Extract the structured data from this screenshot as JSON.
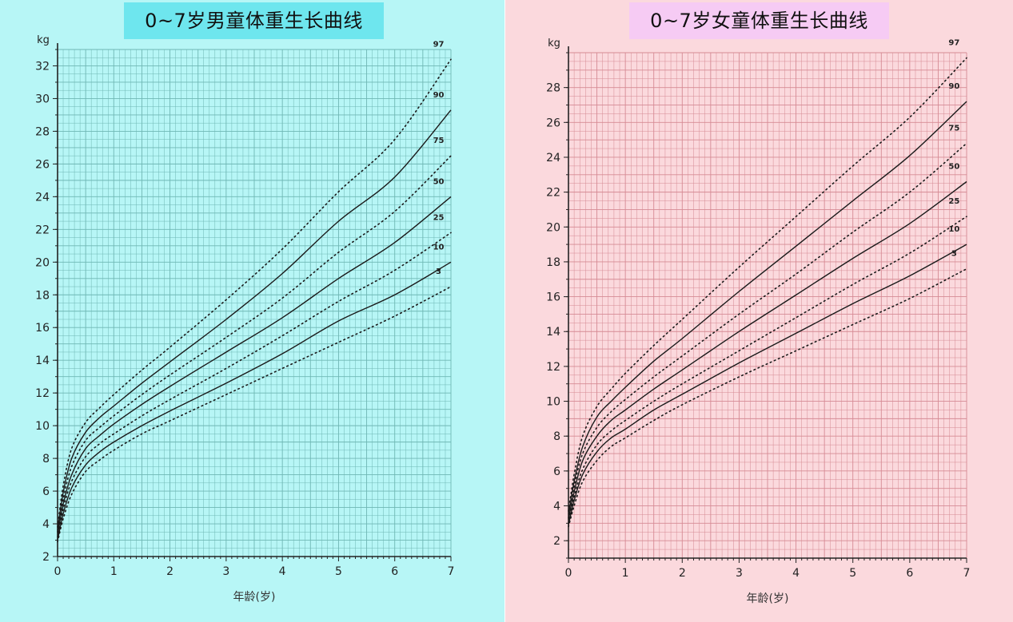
{
  "boys": {
    "title": "0~7岁男童体重生长曲线",
    "accent": "#6ee6ee",
    "chart_data": {
      "type": "line",
      "title": "0~7岁男童体重生长曲线",
      "xlabel": "年龄(岁)",
      "ylabel": "kg",
      "xlim": [
        0,
        7
      ],
      "ylim": [
        2,
        33
      ],
      "xticks": [
        "0",
        "1",
        "2",
        "3",
        "4",
        "5",
        "6",
        "7"
      ],
      "yticks": [
        "2",
        "4",
        "6",
        "8",
        "10",
        "12",
        "14",
        "16",
        "18",
        "20",
        "22",
        "24",
        "26",
        "28",
        "30",
        "32"
      ],
      "grid": true,
      "series": [
        {
          "name": "3",
          "style": "dotted",
          "x": [
            0,
            0.1,
            0.25,
            0.5,
            0.75,
            1,
            1.5,
            2,
            3,
            4,
            5,
            6,
            7
          ],
          "values": [
            2.9,
            4.3,
            5.8,
            7.2,
            7.9,
            8.5,
            9.5,
            10.3,
            11.9,
            13.5,
            15.1,
            16.7,
            18.5
          ]
        },
        {
          "name": "10",
          "style": "solid",
          "x": [
            0,
            0.1,
            0.25,
            0.5,
            0.75,
            1,
            1.5,
            2,
            3,
            4,
            5,
            6,
            7
          ],
          "values": [
            3.0,
            4.6,
            6.2,
            7.6,
            8.4,
            9.0,
            10.0,
            10.9,
            12.6,
            14.4,
            16.4,
            18.0,
            20.0
          ]
        },
        {
          "name": "25",
          "style": "dotted",
          "x": [
            0,
            0.1,
            0.25,
            0.5,
            0.75,
            1,
            1.5,
            2,
            3,
            4,
            5,
            6,
            7
          ],
          "values": [
            3.2,
            4.9,
            6.6,
            8.1,
            8.9,
            9.5,
            10.6,
            11.6,
            13.5,
            15.5,
            17.6,
            19.5,
            21.8
          ]
        },
        {
          "name": "50",
          "style": "solid",
          "x": [
            0,
            0.1,
            0.25,
            0.5,
            0.75,
            1,
            1.5,
            2,
            3,
            4,
            5,
            6,
            7
          ],
          "values": [
            3.3,
            5.2,
            7.0,
            8.6,
            9.4,
            10.1,
            11.3,
            12.4,
            14.5,
            16.6,
            19.0,
            21.2,
            24.0
          ]
        },
        {
          "name": "75",
          "style": "dotted",
          "x": [
            0,
            0.1,
            0.25,
            0.5,
            0.75,
            1,
            1.5,
            2,
            3,
            4,
            5,
            6,
            7
          ],
          "values": [
            3.5,
            5.5,
            7.5,
            9.1,
            9.9,
            10.6,
            11.9,
            13.1,
            15.4,
            17.8,
            20.6,
            23.1,
            26.5
          ]
        },
        {
          "name": "90",
          "style": "solid",
          "x": [
            0,
            0.1,
            0.25,
            0.5,
            0.75,
            1,
            1.5,
            2,
            3,
            4,
            5,
            6,
            7
          ],
          "values": [
            3.6,
            5.9,
            8.0,
            9.6,
            10.5,
            11.2,
            12.6,
            13.9,
            16.5,
            19.3,
            22.5,
            25.2,
            29.3
          ]
        },
        {
          "name": "97",
          "style": "dotted",
          "x": [
            0,
            0.1,
            0.25,
            0.5,
            0.75,
            1,
            1.5,
            2,
            3,
            4,
            5,
            6,
            7
          ],
          "values": [
            3.8,
            6.3,
            8.6,
            10.2,
            11.1,
            11.9,
            13.4,
            14.8,
            17.7,
            20.8,
            24.3,
            27.5,
            32.4
          ]
        }
      ]
    }
  },
  "girls": {
    "title": "0~7岁女童体重生长曲线",
    "accent": "#f6cbf4",
    "chart_data": {
      "type": "line",
      "title": "0~7岁女童体重生长曲线",
      "xlabel": "年龄(岁)",
      "ylabel": "kg",
      "xlim": [
        0,
        7
      ],
      "ylim": [
        1,
        30
      ],
      "xticks": [
        "0",
        "1",
        "2",
        "3",
        "4",
        "5",
        "6",
        "7"
      ],
      "yticks": [
        "2",
        "4",
        "6",
        "8",
        "10",
        "12",
        "14",
        "16",
        "18",
        "20",
        "22",
        "24",
        "26",
        "28"
      ],
      "grid": true,
      "series": [
        {
          "name": "3",
          "style": "dotted",
          "x": [
            0,
            0.1,
            0.25,
            0.5,
            0.75,
            1,
            1.5,
            2,
            3,
            4,
            5,
            6,
            7
          ],
          "values": [
            2.8,
            4.0,
            5.4,
            6.6,
            7.4,
            7.9,
            8.9,
            9.8,
            11.4,
            12.9,
            14.4,
            15.9,
            17.6
          ]
        },
        {
          "name": "10",
          "style": "solid",
          "x": [
            0,
            0.1,
            0.25,
            0.5,
            0.75,
            1,
            1.5,
            2,
            3,
            4,
            5,
            6,
            7
          ],
          "values": [
            2.9,
            4.3,
            5.8,
            7.1,
            7.9,
            8.4,
            9.5,
            10.4,
            12.2,
            13.9,
            15.6,
            17.2,
            19.0
          ]
        },
        {
          "name": "25",
          "style": "dotted",
          "x": [
            0,
            0.1,
            0.25,
            0.5,
            0.75,
            1,
            1.5,
            2,
            3,
            4,
            5,
            6,
            7
          ],
          "values": [
            3.0,
            4.5,
            6.1,
            7.5,
            8.3,
            8.9,
            10.0,
            11.0,
            12.9,
            14.8,
            16.7,
            18.5,
            20.6
          ]
        },
        {
          "name": "50",
          "style": "solid",
          "x": [
            0,
            0.1,
            0.25,
            0.5,
            0.75,
            1,
            1.5,
            2,
            3,
            4,
            5,
            6,
            7
          ],
          "values": [
            3.2,
            4.8,
            6.6,
            8.0,
            8.9,
            9.5,
            10.7,
            11.8,
            14.0,
            16.1,
            18.2,
            20.2,
            22.6
          ]
        },
        {
          "name": "75",
          "style": "dotted",
          "x": [
            0,
            0.1,
            0.25,
            0.5,
            0.75,
            1,
            1.5,
            2,
            3,
            4,
            5,
            6,
            7
          ],
          "values": [
            3.3,
            5.1,
            7.0,
            8.5,
            9.4,
            10.1,
            11.4,
            12.6,
            15.0,
            17.3,
            19.7,
            22.0,
            24.8
          ]
        },
        {
          "name": "90",
          "style": "solid",
          "x": [
            0,
            0.1,
            0.25,
            0.5,
            0.75,
            1,
            1.5,
            2,
            3,
            4,
            5,
            6,
            7
          ],
          "values": [
            3.5,
            5.4,
            7.4,
            9.1,
            10.0,
            10.8,
            12.3,
            13.6,
            16.3,
            18.9,
            21.5,
            24.1,
            27.2
          ]
        },
        {
          "name": "97",
          "style": "dotted",
          "x": [
            0,
            0.1,
            0.25,
            0.5,
            0.75,
            1,
            1.5,
            2,
            3,
            4,
            5,
            6,
            7
          ],
          "values": [
            3.7,
            5.8,
            8.0,
            9.7,
            10.7,
            11.6,
            13.2,
            14.7,
            17.7,
            20.6,
            23.5,
            26.3,
            29.7
          ]
        }
      ]
    }
  }
}
